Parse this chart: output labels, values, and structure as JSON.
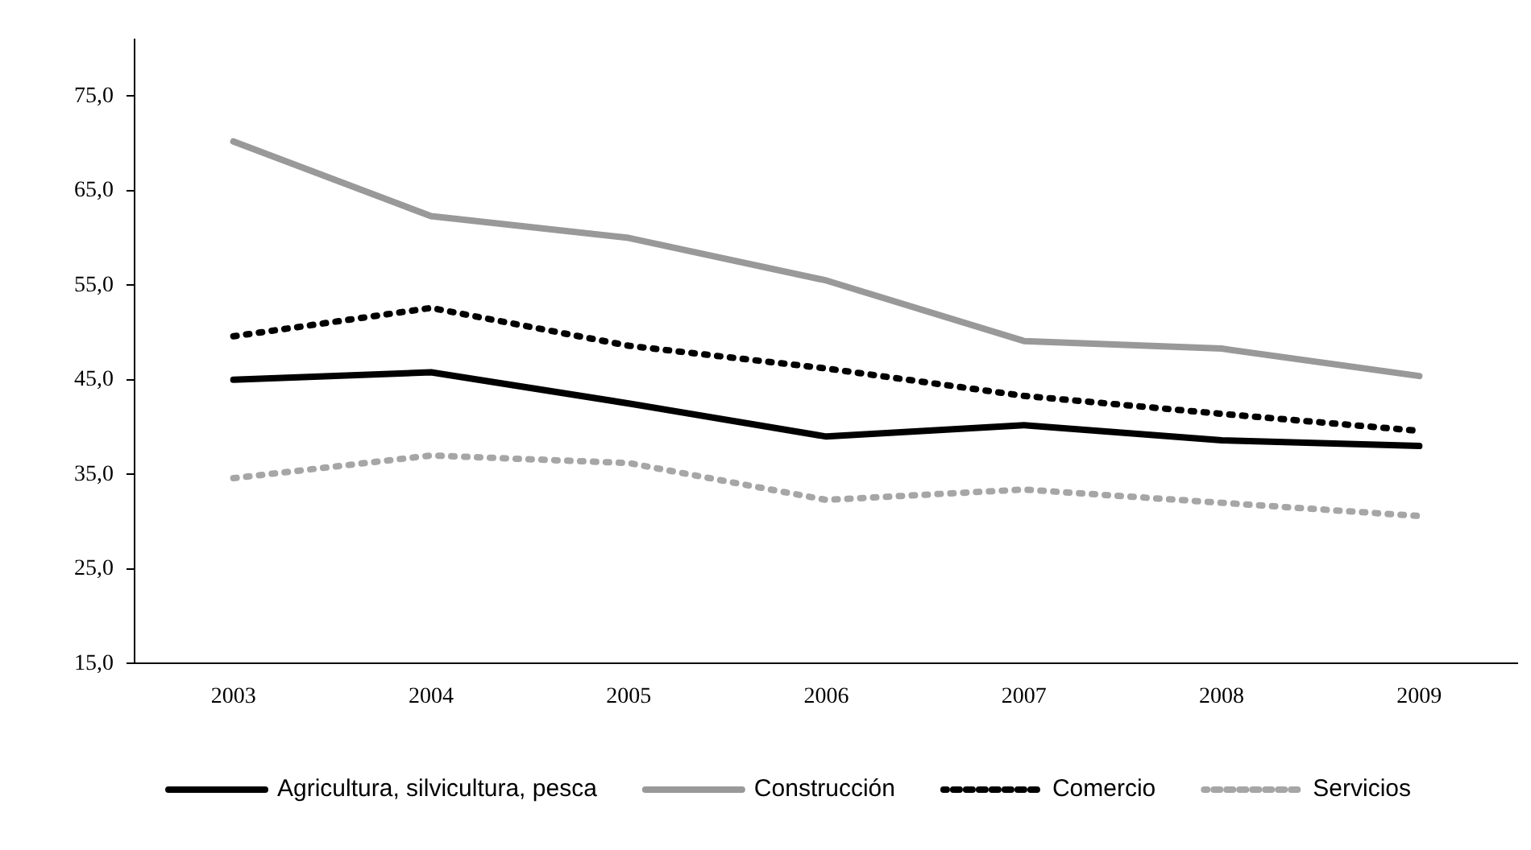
{
  "chart_data": {
    "type": "line",
    "categories": [
      "2003",
      "2004",
      "2005",
      "2006",
      "2007",
      "2008",
      "2009"
    ],
    "series": [
      {
        "name": "Agricultura, silvicultura, pesca",
        "color": "#000000",
        "line_style": "solid",
        "values": [
          45.0,
          45.8,
          42.5,
          39.0,
          40.2,
          38.6,
          38.0
        ]
      },
      {
        "name": "Construcción",
        "color": "#999999",
        "line_style": "solid",
        "values": [
          70.2,
          62.3,
          60.0,
          55.5,
          49.1,
          48.3,
          45.4
        ]
      },
      {
        "name": "Comercio",
        "color": "#000000",
        "line_style": "dotted",
        "values": [
          49.6,
          52.6,
          48.6,
          46.2,
          43.3,
          41.4,
          39.6
        ]
      },
      {
        "name": "Servicios",
        "color": "#a6a6a6",
        "line_style": "dotted",
        "values": [
          34.6,
          37.0,
          36.2,
          32.3,
          33.4,
          32.0,
          30.6
        ]
      }
    ],
    "ylim": [
      15,
      81
    ],
    "yticks": [
      {
        "value": 15,
        "label": "15,0"
      },
      {
        "value": 25,
        "label": "25,0"
      },
      {
        "value": 35,
        "label": "35,0"
      },
      {
        "value": 45,
        "label": "45,0"
      },
      {
        "value": 55,
        "label": "55,0"
      },
      {
        "value": 65,
        "label": "65,0"
      },
      {
        "value": 75,
        "label": "75,0"
      }
    ],
    "grid": false,
    "legend": "bottom",
    "marker": "none"
  }
}
